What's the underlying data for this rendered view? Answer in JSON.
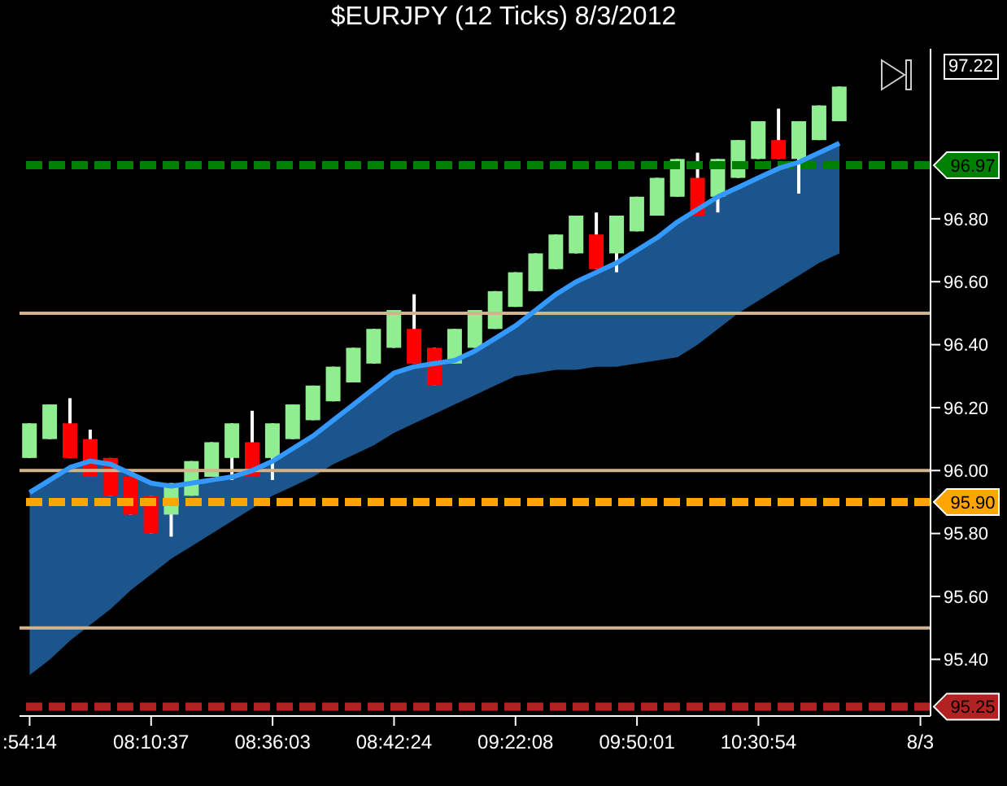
{
  "chart_data": {
    "type": "candlestick",
    "title": "$EURJPY (12 Ticks)  8/3/2012",
    "categories": [
      ":54:14",
      null,
      null,
      null,
      null,
      null,
      "08:10:37",
      null,
      null,
      null,
      null,
      null,
      "08:36:03",
      null,
      null,
      null,
      null,
      null,
      "08:42:24",
      null,
      null,
      null,
      null,
      null,
      "09:22:08",
      null,
      null,
      null,
      null,
      null,
      "09:50:01",
      null,
      null,
      null,
      null,
      null,
      "10:30:54",
      null,
      null,
      null,
      null,
      null,
      null,
      null,
      "8/3"
    ],
    "ohlc": [
      [
        96.04,
        96.15,
        96.04,
        96.15
      ],
      [
        96.1,
        96.21,
        96.1,
        96.21
      ],
      [
        96.15,
        96.23,
        96.04,
        96.04
      ],
      [
        96.1,
        96.13,
        95.98,
        95.98
      ],
      [
        96.04,
        96.04,
        95.92,
        95.92
      ],
      [
        95.98,
        95.98,
        95.86,
        95.86
      ],
      [
        95.92,
        95.92,
        95.8,
        95.8
      ],
      [
        95.86,
        95.96,
        95.79,
        95.96
      ],
      [
        95.92,
        96.03,
        95.92,
        96.03
      ],
      [
        95.98,
        96.09,
        95.98,
        96.09
      ],
      [
        96.04,
        96.15,
        95.97,
        96.15
      ],
      [
        96.09,
        96.19,
        95.98,
        95.98
      ],
      [
        96.04,
        96.15,
        95.97,
        96.15
      ],
      [
        96.1,
        96.21,
        96.1,
        96.21
      ],
      [
        96.16,
        96.27,
        96.16,
        96.27
      ],
      [
        96.22,
        96.33,
        96.22,
        96.33
      ],
      [
        96.28,
        96.39,
        96.28,
        96.39
      ],
      [
        96.34,
        96.45,
        96.34,
        96.45
      ],
      [
        96.39,
        96.51,
        96.39,
        96.51
      ],
      [
        96.45,
        96.56,
        96.34,
        96.34
      ],
      [
        96.39,
        96.39,
        96.27,
        96.27
      ],
      [
        96.34,
        96.45,
        96.34,
        96.45
      ],
      [
        96.39,
        96.51,
        96.39,
        96.51
      ],
      [
        96.45,
        96.57,
        96.45,
        96.57
      ],
      [
        96.52,
        96.63,
        96.52,
        96.63
      ],
      [
        96.57,
        96.69,
        96.57,
        96.69
      ],
      [
        96.64,
        96.75,
        96.64,
        96.75
      ],
      [
        96.69,
        96.81,
        96.69,
        96.81
      ],
      [
        96.75,
        96.82,
        96.64,
        96.64
      ],
      [
        96.69,
        96.81,
        96.63,
        96.81
      ],
      [
        96.76,
        96.87,
        96.76,
        96.87
      ],
      [
        96.81,
        96.93,
        96.81,
        96.93
      ],
      [
        96.87,
        96.99,
        96.87,
        96.99
      ],
      [
        96.93,
        97.01,
        96.81,
        96.81
      ],
      [
        96.87,
        96.99,
        96.82,
        96.99
      ],
      [
        96.93,
        97.05,
        96.93,
        97.05
      ],
      [
        96.99,
        97.11,
        96.99,
        97.11
      ],
      [
        97.05,
        97.15,
        96.99,
        96.99
      ],
      [
        96.99,
        97.11,
        96.88,
        97.11
      ],
      [
        97.05,
        97.16,
        97.05,
        97.16
      ],
      [
        97.11,
        97.22,
        97.11,
        97.22
      ],
      null,
      null,
      null,
      null
    ],
    "colors": [
      "#90ee90",
      "#90ee90",
      "#ff0000",
      "#ff0000",
      "#ff0000",
      "#ff0000",
      "#ff0000",
      "#90ee90",
      "#90ee90",
      "#90ee90",
      "#90ee90",
      "#ff0000",
      "#90ee90",
      "#90ee90",
      "#90ee90",
      "#90ee90",
      "#90ee90",
      "#90ee90",
      "#90ee90",
      "#ff0000",
      "#ff0000",
      "#90ee90",
      "#90ee90",
      "#90ee90",
      "#90ee90",
      "#90ee90",
      "#90ee90",
      "#90ee90",
      "#ff0000",
      "#90ee90",
      "#90ee90",
      "#90ee90",
      "#90ee90",
      "#ff0000",
      "#90ee90",
      "#90ee90",
      "#90ee90",
      "#ff0000",
      "#90ee90",
      "#90ee90",
      "#90ee90",
      null,
      null,
      null,
      null
    ],
    "series": [
      {
        "type": "line",
        "color": "#3399ff",
        "values": [
          95.93,
          95.97,
          96.01,
          96.03,
          96.02,
          95.99,
          95.96,
          95.95,
          95.96,
          95.97,
          95.98,
          96.0,
          96.03,
          96.07,
          96.11,
          96.16,
          96.21,
          96.26,
          96.31,
          96.33,
          96.34,
          96.35,
          96.38,
          96.42,
          96.46,
          96.51,
          96.56,
          96.6,
          96.63,
          96.66,
          96.7,
          96.74,
          96.79,
          96.83,
          96.87,
          96.9,
          96.93,
          96.96,
          96.98,
          97.01,
          97.04,
          null,
          null,
          null,
          null
        ],
        "upper": [
          95.93,
          95.97,
          96.01,
          96.03,
          96.02,
          95.99,
          95.96,
          95.95,
          95.96,
          95.97,
          95.98,
          96.0,
          96.03,
          96.07,
          96.11,
          96.16,
          96.21,
          96.26,
          96.31,
          96.33,
          96.34,
          96.35,
          96.38,
          96.42,
          96.46,
          96.51,
          96.56,
          96.6,
          96.63,
          96.66,
          96.7,
          96.74,
          96.79,
          96.83,
          96.87,
          96.9,
          96.93,
          96.96,
          96.98,
          97.01,
          97.04,
          null,
          null,
          null,
          null
        ],
        "lower": [
          95.35,
          95.4,
          95.46,
          95.51,
          95.56,
          95.62,
          95.67,
          95.72,
          95.76,
          95.8,
          95.84,
          95.88,
          95.92,
          95.95,
          95.98,
          96.02,
          96.05,
          96.08,
          96.12,
          96.15,
          96.18,
          96.21,
          96.24,
          96.27,
          96.3,
          96.31,
          96.32,
          96.32,
          96.33,
          96.33,
          96.34,
          96.35,
          96.36,
          96.4,
          96.45,
          96.5,
          96.54,
          96.58,
          96.62,
          96.66,
          96.69,
          null,
          null,
          null,
          null
        ]
      }
    ],
    "ylim": [
      95.22,
      97.34
    ],
    "yticks": [
      {
        "value": 95.4,
        "label": "95.40"
      },
      {
        "value": 95.6,
        "label": "95.60"
      },
      {
        "value": 95.8,
        "label": "95.80"
      },
      {
        "value": 96,
        "label": "96.00"
      },
      {
        "value": 96.2,
        "label": "96.20"
      },
      {
        "value": 96.4,
        "label": "96.40"
      },
      {
        "value": 96.6,
        "label": "96.60"
      },
      {
        "value": 96.8,
        "label": "96.80"
      }
    ],
    "ref_lines": [
      {
        "axis": "y",
        "value": 96.97,
        "label": "96.97",
        "color": "#008000",
        "line_style": "dashed"
      },
      {
        "axis": "y",
        "value": 95.9,
        "label": "95.90",
        "color": "#ffa500",
        "line_style": "dashed"
      },
      {
        "axis": "y",
        "value": 95.25,
        "label": "95.25",
        "color": "#b22222",
        "line_style": "dashed"
      },
      {
        "axis": "y",
        "value": 96.5,
        "color": "#d2b48c",
        "line_style": "solid"
      },
      {
        "axis": "y",
        "value": 96,
        "color": "#d2b48c",
        "line_style": "solid"
      },
      {
        "axis": "y",
        "value": 95.5,
        "color": "#d2b48c",
        "line_style": "solid"
      }
    ],
    "annotations": [
      "97.22"
    ],
    "grid": false,
    "legend": false,
    "marker": "none"
  }
}
